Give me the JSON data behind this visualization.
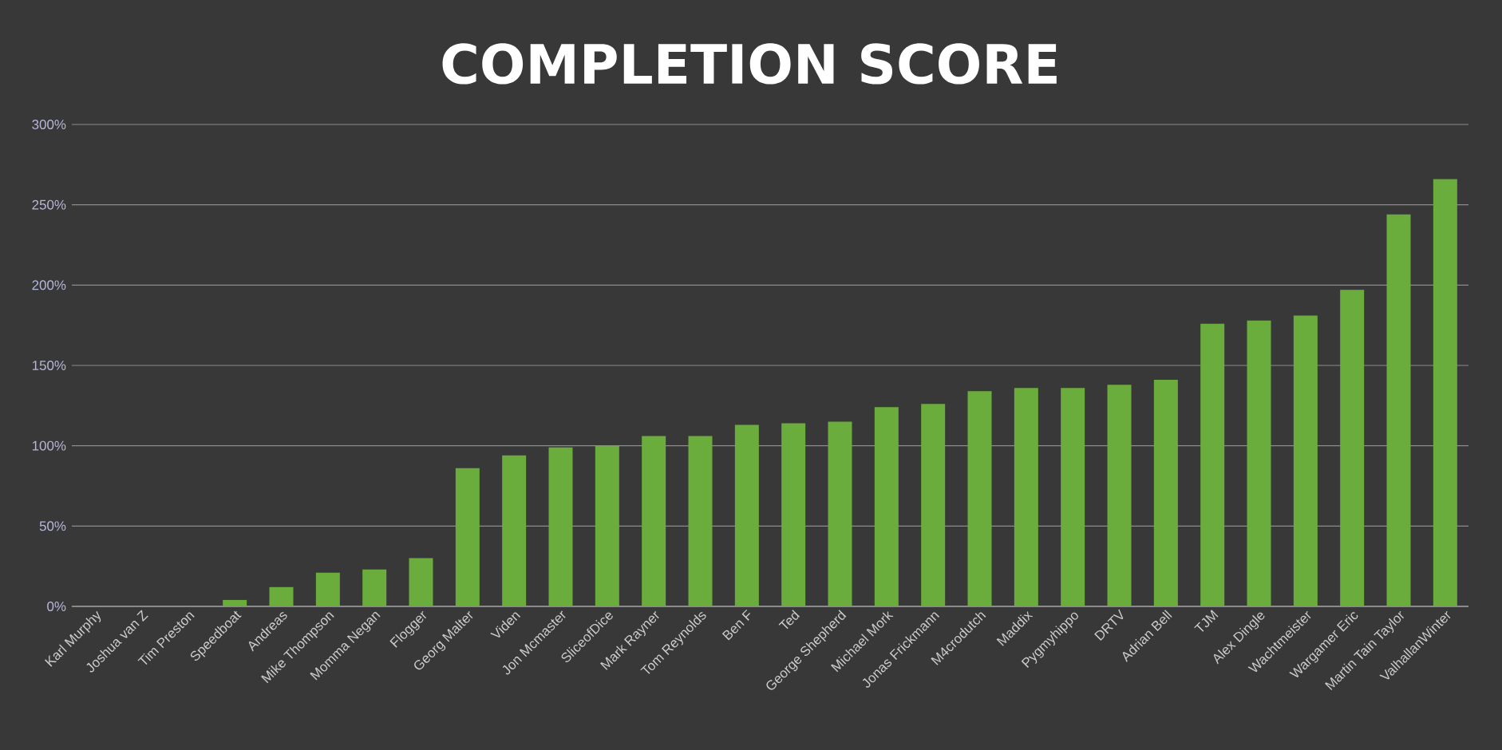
{
  "chart_data": {
    "type": "bar",
    "title": "COMPLETION SCORE",
    "categories": [
      "Karl Murphy",
      "Joshua van Z",
      "Tim Preston",
      "Speedboat",
      "Andreas",
      "Mike Thompson",
      "Momma Negan",
      "Flogger",
      "Georg Malter",
      "Viden",
      "Jon Mcmaster",
      "SliceofDice",
      "Mark Rayner",
      "Tom Reynolds",
      "Ben F",
      "Ted",
      "George Shepherd",
      "Michael Mork",
      "Jonas Frickmann",
      "M4crodutch",
      "Maddix",
      "Pygmyhippo",
      "DRTV",
      "Adrian Bell",
      "TJM",
      "Alex Dingle",
      "Wachtmeister",
      "Wargamer Eric",
      "Martin Tain Taylor",
      "ValhallanWinter"
    ],
    "values": [
      0,
      0,
      0,
      4,
      12,
      21,
      23,
      30,
      86,
      94,
      99,
      100,
      106,
      106,
      113,
      114,
      115,
      124,
      126,
      134,
      136,
      136,
      138,
      141,
      176,
      178,
      181,
      197,
      244,
      266
    ],
    "color": "#6aad3d",
    "ylim": [
      0,
      300
    ],
    "yticks": [
      {
        "value": 0,
        "label": "0%"
      },
      {
        "value": 50,
        "label": "50%"
      },
      {
        "value": 100,
        "label": "100%"
      },
      {
        "value": 150,
        "label": "150%"
      },
      {
        "value": 200,
        "label": "200%"
      },
      {
        "value": 250,
        "label": "250%"
      },
      {
        "value": 300,
        "label": "300%"
      }
    ],
    "grid": "y"
  }
}
